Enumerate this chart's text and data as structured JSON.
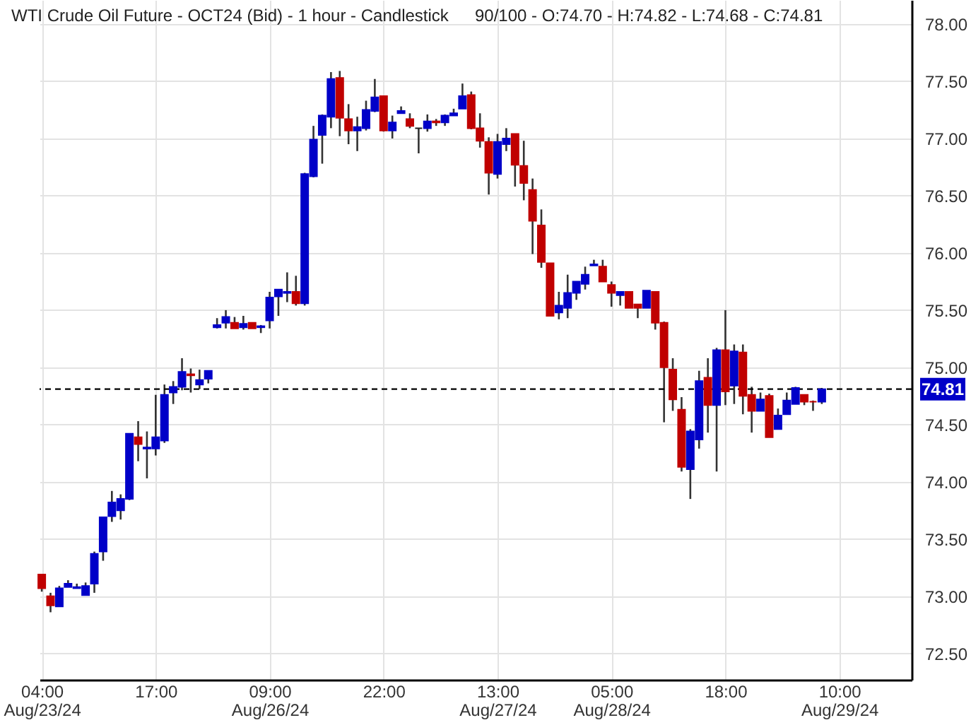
{
  "chart_data": {
    "type": "candlestick",
    "title": "WTI Crude Oil Future - OCT24 (Bid) - 1 hour - Candlestick",
    "subtitle": "90/100 - O:74.70 - H:74.82 - L:74.68 - C:74.81",
    "categories": [
      "04:00 Aug/23/24",
      null,
      null,
      null,
      null,
      null,
      null,
      null,
      null,
      null,
      null,
      null,
      null,
      "17:00",
      null,
      null,
      null,
      null,
      null,
      null,
      null,
      null,
      null,
      null,
      null,
      null,
      "09:00 Aug/26/24",
      null,
      null,
      null,
      null,
      null,
      null,
      null,
      null,
      null,
      null,
      null,
      null,
      "22:00",
      null,
      null,
      null,
      null,
      null,
      null,
      null,
      null,
      null,
      null,
      null,
      null,
      "13:00 Aug/27/24",
      null,
      null,
      null,
      null,
      null,
      null,
      null,
      null,
      null,
      null,
      null,
      null,
      "05:00 Aug/28/24",
      null,
      null,
      null,
      null,
      null,
      null,
      null,
      null,
      null,
      null,
      null,
      null,
      "18:00",
      null,
      null,
      null,
      null,
      null,
      null,
      null,
      null,
      null,
      null,
      null,
      null,
      "10:00 Aug/29/24",
      null,
      null,
      null,
      null,
      null,
      null,
      null,
      null
    ],
    "ohlc": [
      [
        73.19,
        73.19,
        73.04,
        73.07
      ],
      [
        73.0,
        73.03,
        72.86,
        72.92
      ],
      [
        72.91,
        73.09,
        72.91,
        73.07
      ],
      [
        73.08,
        73.14,
        73.08,
        73.11
      ],
      [
        73.07,
        73.11,
        73.07,
        73.08
      ],
      [
        73.01,
        73.12,
        73.01,
        73.09
      ],
      [
        73.11,
        73.39,
        73.03,
        73.37
      ],
      [
        73.39,
        73.69,
        73.31,
        73.69
      ],
      [
        73.7,
        73.92,
        73.65,
        73.82
      ],
      [
        73.75,
        73.89,
        73.67,
        73.85
      ],
      [
        73.85,
        74.42,
        73.84,
        74.42
      ],
      [
        74.39,
        74.53,
        74.18,
        74.33
      ],
      [
        74.29,
        74.44,
        74.03,
        74.3
      ],
      [
        74.29,
        74.76,
        74.23,
        74.39
      ],
      [
        74.36,
        74.85,
        74.34,
        74.76
      ],
      [
        74.78,
        74.88,
        74.68,
        74.83
      ],
      [
        74.83,
        75.08,
        74.8,
        74.96
      ],
      [
        74.94,
        74.99,
        74.78,
        74.93
      ],
      [
        74.85,
        74.98,
        74.81,
        74.89
      ],
      [
        74.9,
        74.97,
        74.86,
        74.97
      ],
      [
        75.35,
        75.43,
        75.34,
        75.37
      ],
      [
        75.39,
        75.5,
        75.34,
        75.44
      ],
      [
        75.39,
        75.44,
        75.34,
        75.34
      ],
      [
        75.35,
        75.45,
        75.33,
        75.38
      ],
      [
        75.39,
        75.39,
        75.34,
        75.34
      ],
      [
        75.35,
        75.37,
        75.3,
        75.36
      ],
      [
        75.41,
        75.66,
        75.34,
        75.61
      ],
      [
        75.62,
        75.68,
        75.45,
        75.68
      ],
      [
        75.65,
        75.83,
        75.57,
        75.66
      ],
      [
        75.66,
        75.8,
        75.54,
        75.56
      ],
      [
        75.56,
        76.7,
        75.54,
        76.69
      ],
      [
        76.67,
        77.11,
        76.66,
        76.99
      ],
      [
        77.03,
        77.21,
        76.78,
        77.2
      ],
      [
        77.19,
        77.58,
        77.09,
        77.52
      ],
      [
        77.53,
        77.59,
        77.02,
        77.18
      ],
      [
        77.17,
        77.3,
        76.95,
        77.07
      ],
      [
        77.07,
        77.19,
        76.89,
        77.1
      ],
      [
        77.09,
        77.33,
        77.07,
        77.25
      ],
      [
        77.24,
        77.52,
        77.23,
        77.36
      ],
      [
        77.37,
        77.37,
        77.06,
        77.07
      ],
      [
        77.07,
        77.2,
        77.0,
        77.14
      ],
      [
        77.22,
        77.28,
        77.22,
        77.24
      ],
      [
        77.17,
        77.22,
        77.09,
        77.11
      ],
      [
        77.09,
        77.09,
        76.87,
        77.09
      ],
      [
        77.09,
        77.21,
        77.06,
        77.15
      ],
      [
        77.15,
        77.17,
        77.11,
        77.14
      ],
      [
        77.14,
        77.21,
        77.11,
        77.2
      ],
      [
        77.2,
        77.26,
        77.2,
        77.22
      ],
      [
        77.26,
        77.48,
        77.26,
        77.37
      ],
      [
        77.38,
        77.41,
        77.08,
        77.09
      ],
      [
        77.09,
        77.22,
        76.92,
        76.98
      ],
      [
        76.97,
        77.01,
        76.51,
        76.7
      ],
      [
        76.69,
        77.04,
        76.65,
        76.97
      ],
      [
        76.95,
        77.09,
        76.89,
        77.0
      ],
      [
        77.04,
        77.04,
        76.58,
        76.77
      ],
      [
        76.76,
        76.98,
        76.46,
        76.61
      ],
      [
        76.55,
        76.65,
        75.99,
        76.28
      ],
      [
        76.24,
        76.38,
        75.87,
        75.92
      ],
      [
        75.91,
        75.91,
        75.45,
        75.45
      ],
      [
        75.48,
        75.66,
        75.42,
        75.54
      ],
      [
        75.52,
        75.81,
        75.43,
        75.65
      ],
      [
        75.65,
        75.75,
        75.59,
        75.75
      ],
      [
        75.73,
        75.88,
        75.68,
        75.81
      ],
      [
        75.89,
        75.94,
        75.89,
        75.9
      ],
      [
        75.88,
        75.94,
        75.75,
        75.75
      ],
      [
        75.72,
        75.75,
        75.53,
        75.65
      ],
      [
        75.63,
        75.66,
        75.54,
        75.66
      ],
      [
        75.66,
        75.66,
        75.52,
        75.52
      ],
      [
        75.55,
        75.55,
        75.43,
        75.52
      ],
      [
        75.52,
        75.67,
        75.52,
        75.67
      ],
      [
        75.66,
        75.66,
        75.33,
        75.39
      ],
      [
        75.39,
        75.4,
        74.52,
        75.0
      ],
      [
        74.98,
        75.08,
        74.62,
        74.72
      ],
      [
        74.63,
        74.74,
        74.09,
        74.13
      ],
      [
        74.11,
        74.46,
        73.85,
        74.44
      ],
      [
        74.37,
        74.97,
        74.29,
        74.88
      ],
      [
        74.91,
        75.08,
        74.43,
        74.67
      ],
      [
        74.67,
        75.17,
        74.09,
        75.15
      ],
      [
        75.15,
        75.5,
        74.67,
        74.79
      ],
      [
        74.84,
        75.2,
        74.68,
        75.14
      ],
      [
        75.13,
        75.2,
        74.59,
        74.75
      ],
      [
        74.76,
        74.83,
        74.43,
        74.62
      ],
      [
        74.62,
        74.78,
        74.62,
        74.72
      ],
      [
        74.75,
        74.77,
        74.39,
        74.39
      ],
      [
        74.46,
        74.64,
        74.46,
        74.58
      ],
      [
        74.59,
        74.78,
        74.59,
        74.71
      ],
      [
        74.68,
        74.83,
        74.68,
        74.82
      ],
      [
        74.76,
        74.76,
        74.67,
        74.7
      ],
      [
        74.7,
        74.71,
        74.62,
        74.7
      ],
      [
        74.7,
        74.82,
        74.68,
        74.81
      ],
      null,
      null,
      null,
      null,
      null,
      null,
      null,
      null,
      null,
      null
    ],
    "colors": [
      "#c00000",
      "#c00000",
      "#0000c8",
      "#0000c8",
      "#0000c8",
      "#0000c8",
      "#0000c8",
      "#0000c8",
      "#0000c8",
      "#0000c8",
      "#0000c8",
      "#c00000",
      "#0000c8",
      "#0000c8",
      "#0000c8",
      "#0000c8",
      "#0000c8",
      "#c00000",
      "#0000c8",
      "#0000c8",
      "#0000c8",
      "#0000c8",
      "#c00000",
      "#0000c8",
      "#c00000",
      "#0000c8",
      "#0000c8",
      "#0000c8",
      "#0000c8",
      "#c00000",
      "#0000c8",
      "#0000c8",
      "#0000c8",
      "#0000c8",
      "#c00000",
      "#c00000",
      "#0000c8",
      "#0000c8",
      "#0000c8",
      "#c00000",
      "#0000c8",
      "#0000c8",
      "#c00000",
      "#222222",
      "#0000c8",
      "#c00000",
      "#0000c8",
      "#0000c8",
      "#0000c8",
      "#c00000",
      "#c00000",
      "#c00000",
      "#0000c8",
      "#0000c8",
      "#c00000",
      "#c00000",
      "#c00000",
      "#c00000",
      "#c00000",
      "#0000c8",
      "#0000c8",
      "#0000c8",
      "#0000c8",
      "#0000c8",
      "#c00000",
      "#c00000",
      "#0000c8",
      "#c00000",
      "#c00000",
      "#0000c8",
      "#c00000",
      "#c00000",
      "#c00000",
      "#c00000",
      "#0000c8",
      "#0000c8",
      "#c00000",
      "#0000c8",
      "#c00000",
      "#0000c8",
      "#c00000",
      "#c00000",
      "#0000c8",
      "#c00000",
      "#0000c8",
      "#0000c8",
      "#0000c8",
      "#c00000",
      "#c00000",
      "#0000c8",
      null,
      null,
      null,
      null,
      null,
      null,
      null,
      null,
      null,
      null
    ],
    "ylim": [
      72.27,
      78.21
    ],
    "yticks": [
      {
        "value": 72.5,
        "label": "72.50"
      },
      {
        "value": 73,
        "label": "73.00"
      },
      {
        "value": 73.5,
        "label": "73.50"
      },
      {
        "value": 74,
        "label": "74.00"
      },
      {
        "value": 74.5,
        "label": "74.50"
      },
      {
        "value": 75,
        "label": "75.00"
      },
      {
        "value": 75.5,
        "label": "75.50"
      },
      {
        "value": 76,
        "label": "76.00"
      },
      {
        "value": 76.5,
        "label": "76.50"
      },
      {
        "value": 77,
        "label": "77.00"
      },
      {
        "value": 77.5,
        "label": "77.50"
      },
      {
        "value": 78,
        "label": "78.00"
      }
    ],
    "ref_lines": [
      {
        "axis": "y",
        "value": 74.81,
        "label": "74.81",
        "color": "#000000",
        "line_style": "dashed"
      }
    ],
    "grid": true
  }
}
